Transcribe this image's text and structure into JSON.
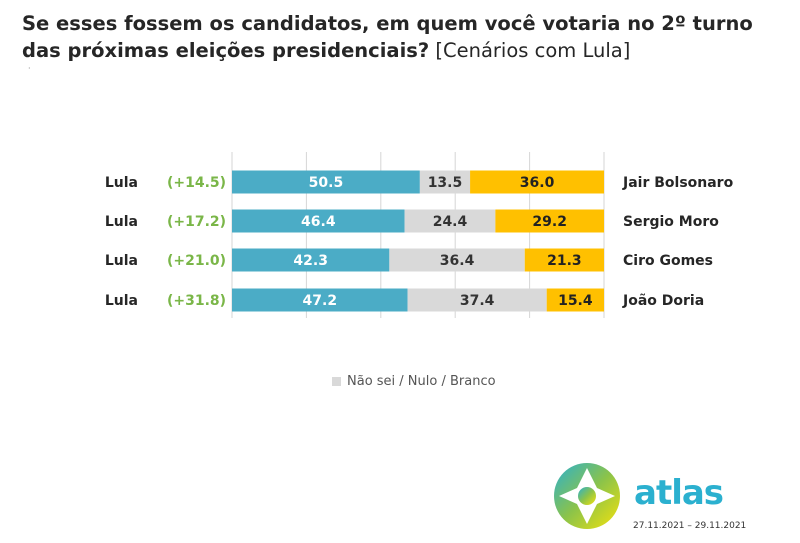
{
  "title": {
    "bold": "Se esses fossem os candidatos, em quem você votaria no 2º turno das próximas eleições presidenciais?",
    "light": "[Cenários com Lula]"
  },
  "colors": {
    "lula": "#4bacc6",
    "undecided": "#d9d9d9",
    "opponent": "#ffc000",
    "margin": "#7ab648"
  },
  "chart_data": {
    "type": "bar",
    "stacked": true,
    "orientation": "horizontal",
    "xlim": [
      0,
      100
    ],
    "grid": true,
    "categories": [
      "Jair Bolsonaro",
      "Sergio Moro",
      "Ciro Gomes",
      "João Doria"
    ],
    "left_labels": [
      "Lula",
      "Lula",
      "Lula",
      "Lula"
    ],
    "margins": [
      "(+14.5)",
      "(+17.2)",
      "(+21.0)",
      "(+31.8)"
    ],
    "series": [
      {
        "values": [
          50.5,
          46.4,
          42.3,
          47.2
        ]
      },
      {
        "name": "Não sei / Nulo / Branco",
        "values": [
          13.5,
          24.4,
          36.4,
          37.4
        ]
      },
      {
        "values": [
          36.0,
          29.2,
          21.3,
          15.4
        ]
      }
    ],
    "value_labels": [
      [
        "50.5",
        "13.5",
        "36.0"
      ],
      [
        "46.4",
        "24.4",
        "29.2"
      ],
      [
        "42.3",
        "36.4",
        "21.3"
      ],
      [
        "47.2",
        "37.4",
        "15.4"
      ]
    ]
  },
  "legend": {
    "label": "Não sei / Nulo / Branco"
  },
  "brand": {
    "name": "atlas",
    "dates": "27.11.2021 – 29.11.2021"
  },
  "decor": {
    "dot": "·"
  }
}
